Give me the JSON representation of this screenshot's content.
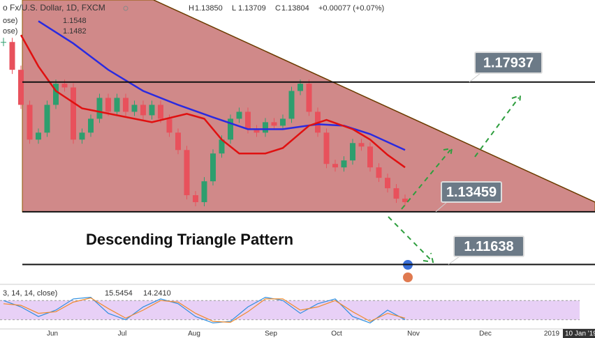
{
  "chart_data": {
    "type": "candlestick",
    "title": "o Fx/U.S. Dollar, 1D, FXCM",
    "ohlc": [
      {
        "name": "H",
        "value": {
          "value": 1.1385,
          "label": "1.13850"
        }
      },
      {
        "name": "L",
        "value": 1.13709
      },
      {
        "name": "C",
        "value": 1.13804
      }
    ],
    "change": "+0.00077 (+0.07%)",
    "ylim": [
      1.11,
      1.2
    ],
    "closes": [
      1.1932,
      1.1836,
      1.1715,
      1.1595,
      1.1619,
      1.1715,
      1.1788,
      1.1775,
      1.1595,
      1.1619,
      1.1667,
      1.1739,
      1.1691,
      1.1739,
      1.1691,
      1.1715,
      1.1679,
      1.1715,
      1.1667,
      1.1619,
      1.1559,
      1.1403,
      1.1379,
      1.1451,
      1.1547,
      1.1595,
      1.1667,
      1.1691,
      1.1631,
      1.1619,
      1.1655,
      1.1643,
      1.1667,
      1.1763,
      1.1788,
      1.1691,
      1.1619,
      1.1511,
      1.1499,
      1.1523,
      1.1583,
      1.1571,
      1.1499,
      1.1463,
      1.1427,
      1.1391,
      1.1379
    ],
    "up_color": "#2e9e6e",
    "down_color": "#e8515c",
    "series": [
      {
        "name": "1.1548",
        "label": "ose)",
        "color": "#2a2ae0",
        "x": [
          4,
          8,
          12,
          16,
          20,
          24,
          28,
          32,
          36,
          39,
          42,
          46
        ],
        "values": [
          1.2004,
          1.1927,
          1.1836,
          1.1763,
          1.1715,
          1.1672,
          1.1631,
          1.1631,
          1.1648,
          1.1643,
          1.1614,
          1.1559
        ]
      },
      {
        "name": "1.1482",
        "label": "ose)",
        "color": "#e01010",
        "x": [
          2,
          4,
          6,
          9,
          13,
          17,
          21,
          23,
          25,
          27,
          30,
          32,
          35,
          37,
          40,
          42,
          44,
          46
        ],
        "values": [
          1.1956,
          1.1848,
          1.1763,
          1.1703,
          1.1679,
          1.1655,
          1.1684,
          1.1667,
          1.1595,
          1.1547,
          1.1547,
          1.1566,
          1.1643,
          1.1663,
          1.1631,
          1.1595,
          1.1542,
          1.1499
        ]
      }
    ],
    "levels": [
      1.17937,
      1.13459,
      1.11638
    ],
    "annotation": "Descending Triangle Pattern",
    "x_labels": [
      "Jun",
      "Jul",
      "Aug",
      "Sep",
      "Oct",
      "Nov",
      "Dec",
      "2019"
    ],
    "cursor_date": "10 Jan '19",
    "oscillator": {
      "label": "3, 14, 14, close)",
      "ylim": [
        0,
        100
      ],
      "band": [
        20,
        80
      ],
      "series": [
        {
          "name": "15.5454",
          "color": "#2f8fe0",
          "x": [
            0,
            2,
            4,
            6,
            8,
            10,
            12,
            14,
            16,
            18,
            20,
            22,
            24,
            26,
            28,
            30,
            32,
            34,
            36,
            38,
            40,
            42,
            44,
            46
          ],
          "values": [
            80,
            60,
            30,
            50,
            85,
            90,
            40,
            20,
            60,
            85,
            70,
            30,
            10,
            15,
            60,
            90,
            80,
            40,
            70,
            85,
            30,
            10,
            50,
            20
          ]
        },
        {
          "name": {
            "value": 14.241,
            "label": "14.2410"
          },
          "color": "#f08a2c",
          "x": [
            0,
            2,
            4,
            6,
            8,
            10,
            12,
            14,
            16,
            18,
            20,
            22,
            24,
            26,
            28,
            30,
            32,
            34,
            36,
            38,
            40,
            42,
            44,
            46
          ],
          "values": [
            70,
            65,
            40,
            45,
            75,
            88,
            55,
            25,
            50,
            80,
            75,
            40,
            15,
            12,
            45,
            85,
            85,
            50,
            60,
            80,
            45,
            15,
            40,
            25
          ]
        }
      ]
    }
  }
}
